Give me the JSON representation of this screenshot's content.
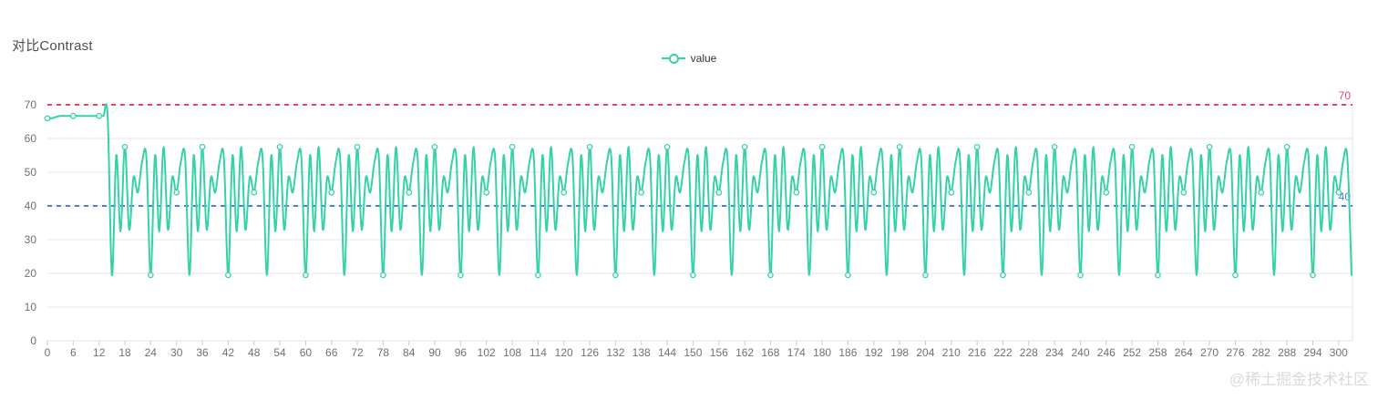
{
  "chart": {
    "title": "对比Contrast",
    "legend": {
      "label": "value"
    },
    "watermark": "@稀土掘金技术社区"
  },
  "colors": {
    "series": "#35d2a8",
    "markline_high": "#e0486b",
    "markline_low": "#4d7bd9",
    "grid_line": "#e6e6e6",
    "axis_tick": "#cccccc",
    "axis_label": "#6e7079",
    "title_text": "#4f4f4f",
    "legend_text": "#333333",
    "watermark_text": "#dadada",
    "background": "#ffffff"
  },
  "chart_data": {
    "type": "line",
    "title": "对比Contrast",
    "smooth": true,
    "grid": "horizontal",
    "legend_position": "top-center",
    "series_name": "value",
    "x_start": 0,
    "x_step": 1,
    "x_label_interval": 6,
    "symbol_every": 6,
    "ylim": [
      0,
      70
    ],
    "y_ticks": [
      0,
      10,
      20,
      30,
      40,
      50,
      60,
      70
    ],
    "x_tick_labels": [
      0,
      6,
      12,
      18,
      24,
      30,
      36,
      42,
      48,
      54,
      60,
      66,
      72,
      78,
      84,
      90,
      96,
      102,
      108,
      114,
      120,
      126,
      132,
      138,
      144,
      150,
      156,
      162,
      168,
      174,
      180,
      186,
      192,
      198,
      204,
      210,
      216,
      222,
      228,
      234,
      240,
      246,
      252,
      258,
      264,
      270,
      276,
      282,
      288,
      294,
      300
    ],
    "marklines": [
      {
        "label": "70",
        "value": 70,
        "color": "#e0486b",
        "style": "dashed"
      },
      {
        "label": "40",
        "value": 40,
        "color": "#4d7bd9",
        "style": "dashed"
      }
    ],
    "series": [
      {
        "name": "value",
        "color": "#35d2a8",
        "values": [
          66,
          66,
          66.4,
          66.7,
          66.7,
          66.7,
          66.7,
          66.7,
          66.7,
          66.7,
          66.7,
          66.7,
          66.7,
          66.7,
          66.7,
          19.5,
          55,
          32.5,
          57.5,
          33,
          48.5,
          44,
          53,
          54.5,
          19.5,
          55,
          32.5,
          57.5,
          33,
          48.5,
          44,
          53,
          54.5,
          19.5,
          55,
          32.5,
          57.5,
          33,
          48.5,
          44,
          53,
          54.5,
          19.5,
          55,
          32.5,
          57.5,
          33,
          48.5,
          44,
          53,
          54.5,
          19.5,
          55,
          32.5,
          57.5,
          33,
          48.5,
          44,
          53,
          54.5,
          19.5,
          55,
          32.5,
          57.5,
          33,
          48.5,
          44,
          53,
          54.5,
          19.5,
          55,
          32.5,
          57.5,
          33,
          48.5,
          44,
          53,
          54.5,
          19.5,
          55,
          32.5,
          57.5,
          33,
          48.5,
          44,
          53,
          54.5,
          19.5,
          55,
          32.5,
          57.5,
          33,
          48.5,
          44,
          53,
          54.5,
          19.5,
          55,
          32.5,
          57.5,
          33,
          48.5,
          44,
          53,
          54.5,
          19.5,
          55,
          32.5,
          57.5,
          33,
          48.5,
          44,
          53,
          54.5,
          19.5,
          55,
          32.5,
          57.5,
          33,
          48.5,
          44,
          53,
          54.5,
          19.5,
          55,
          32.5,
          57.5,
          33,
          48.5,
          44,
          53,
          54.5,
          19.5,
          55,
          32.5,
          57.5,
          33,
          48.5,
          44,
          53,
          54.5,
          19.5,
          55,
          32.5,
          57.5,
          33,
          48.5,
          44,
          53,
          54.5,
          19.5,
          55,
          32.5,
          57.5,
          33,
          48.5,
          44,
          53,
          54.5,
          19.5,
          55,
          32.5,
          57.5,
          33,
          48.5,
          44,
          53,
          54.5,
          19.5,
          55,
          32.5,
          57.5,
          33,
          48.5,
          44,
          53,
          54.5,
          19.5,
          55,
          32.5,
          57.5,
          33,
          48.5,
          44,
          53,
          54.5,
          19.5,
          55,
          32.5,
          57.5,
          33,
          48.5,
          44,
          53,
          54.5,
          19.5,
          55,
          32.5,
          57.5,
          33,
          48.5,
          44,
          53,
          54.5,
          19.5,
          55,
          32.5,
          57.5,
          33,
          48.5,
          44,
          53,
          54.5,
          19.5,
          55,
          32.5,
          57.5,
          33,
          48.5,
          44,
          53,
          54.5,
          19.5,
          55,
          32.5,
          57.5,
          33,
          48.5,
          44,
          53,
          54.5,
          19.5,
          55,
          32.5,
          57.5,
          33,
          48.5,
          44,
          53,
          54.5,
          19.5,
          55,
          32.5,
          57.5,
          33,
          48.5,
          44,
          53,
          54.5,
          19.5,
          55,
          32.5,
          57.5,
          33,
          48.5,
          44,
          53,
          54.5,
          19.5,
          55,
          32.5,
          57.5,
          33,
          48.5,
          44,
          53,
          54.5,
          19.5,
          55,
          32.5,
          57.5,
          33,
          48.5,
          44,
          53,
          54.5,
          19.5,
          55,
          32.5,
          57.5,
          33,
          48.5,
          44,
          53,
          54.5,
          19.5,
          55,
          32.5,
          57.5,
          33,
          48.5,
          44,
          53,
          54.5,
          19.5,
          55,
          32.5,
          57.5,
          33,
          48.5,
          44,
          53,
          54.5,
          19.5
        ]
      }
    ]
  }
}
